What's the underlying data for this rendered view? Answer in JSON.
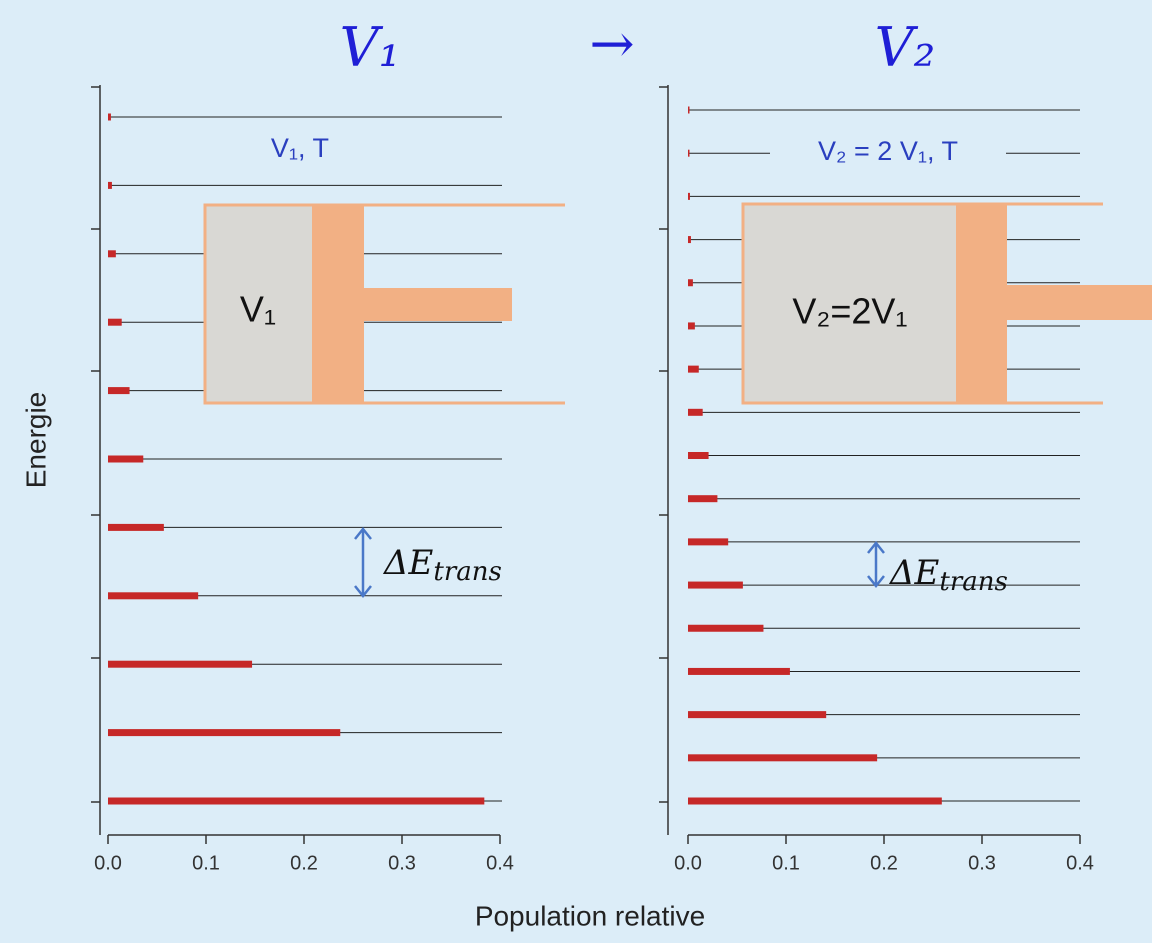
{
  "title": {
    "left": "V₁",
    "arrow": "→",
    "right": "V₂"
  },
  "x_label": "Population relative",
  "y_label": "Energie",
  "chart_data": [
    {
      "type": "bar",
      "orientation": "horizontal",
      "color": "#c62828",
      "categories": [
        null,
        null,
        null,
        null,
        null,
        null,
        null,
        null,
        null,
        null,
        null
      ],
      "values": [
        0.384,
        0.237,
        0.147,
        0.092,
        0.057,
        0.036,
        0.022,
        0.014,
        0.008,
        0.004,
        0.003
      ],
      "xlim": [
        0,
        0.4
      ],
      "xticks": [
        {
          "value": 0,
          "label": "0.0"
        },
        0.1,
        0.2,
        0.3,
        0.4
      ],
      "state_label": "V₁, T",
      "piston_label": "V₁",
      "delta": {
        "symbol": "ΔE",
        "subscript": "trans"
      }
    },
    {
      "type": "bar",
      "orientation": "horizontal",
      "color": "#c62828",
      "categories": [
        null,
        null,
        null,
        null,
        null,
        null,
        null,
        null,
        null,
        null,
        null,
        null,
        null,
        null,
        null,
        null,
        null
      ],
      "values": [
        0.259,
        0.193,
        0.141,
        0.104,
        0.077,
        0.056,
        0.041,
        0.03,
        0.021,
        0.015,
        0.011,
        0.007,
        0.005,
        0.003,
        0.002,
        0.001,
        0.001
      ],
      "xlim": [
        0,
        0.4
      ],
      "xticks": [
        {
          "value": 0,
          "label": "0.0"
        },
        0.1,
        0.2,
        0.3,
        0.4
      ],
      "state_label": "V₂ = 2 V₁, T",
      "piston_label": "V₂=2V₁",
      "delta": {
        "symbol": "ΔE",
        "subscript": "trans"
      }
    }
  ]
}
